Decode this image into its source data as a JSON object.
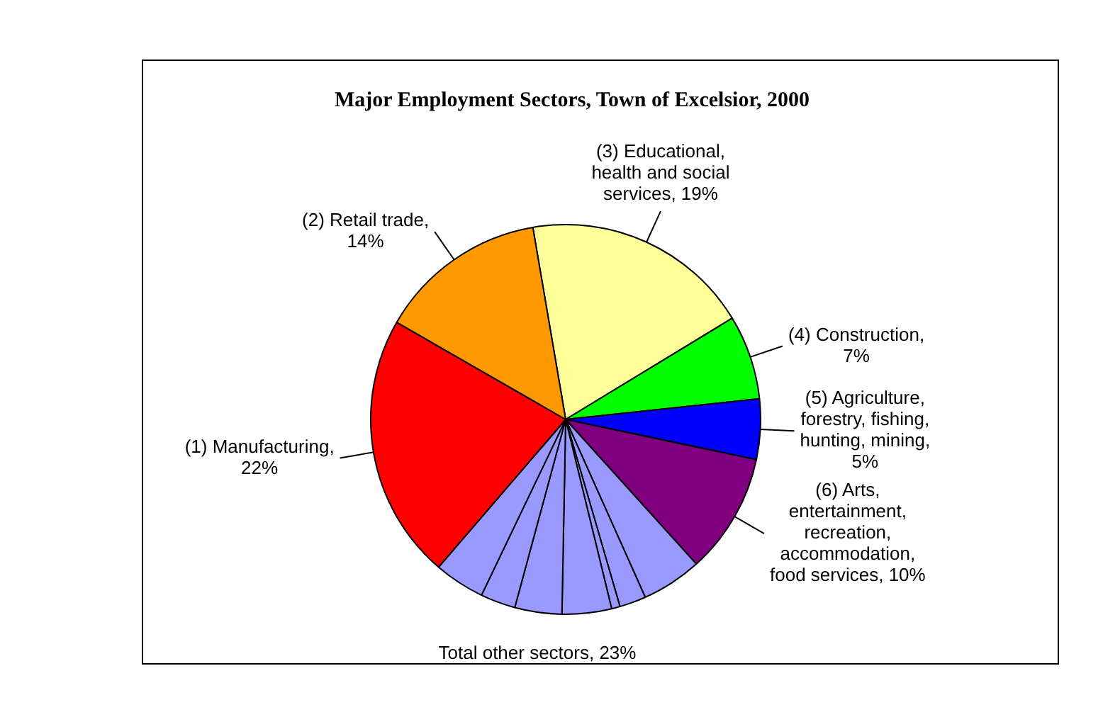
{
  "chart_data": {
    "type": "pie",
    "title": "Major Employment Sectors, Town of Excelsior, 2000",
    "categories": [
      "(3) Educational, health and social services, 19%",
      "(4) Construction, 7%",
      "(5) Agriculture, forestry, fishing, hunting, mining, 5%",
      "(6) Arts, entertainment, recreation, accommodation, food services, 10%",
      null,
      null,
      null,
      null,
      null,
      null,
      null,
      "(1) Manufacturing, 22%",
      "(2) Retail trade, 14%"
    ],
    "values": [
      19,
      7,
      5,
      10,
      5,
      2.2,
      0.7,
      4.1,
      3.9,
      2.9,
      4.2,
      22,
      14
    ],
    "colors": [
      "#ffff99",
      "#00ff00",
      "#0000ff",
      "#800080",
      "#9999ff",
      "#9999ff",
      "#9999ff",
      "#9999ff",
      "#9999ff",
      "#9999ff",
      "#9999ff",
      "#ff0000",
      "#ff9900"
    ],
    "annotations": [
      "Total other sectors, 23%"
    ],
    "legend": false
  }
}
